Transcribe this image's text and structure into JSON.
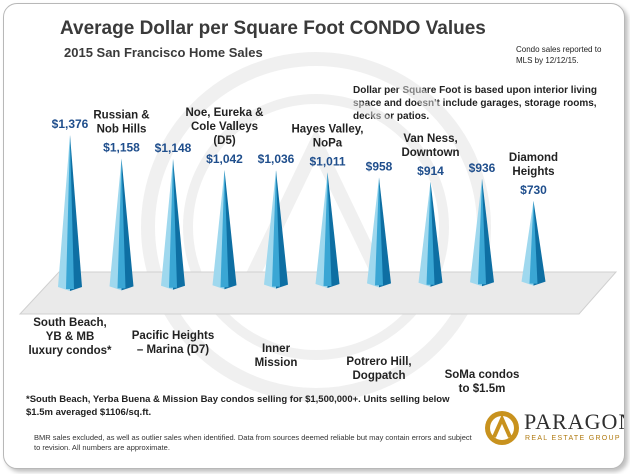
{
  "header": {
    "title": "Average Dollar per Square Foot CONDO Values",
    "subtitle": "2015 San Francisco Home Sales"
  },
  "notes": {
    "side": "Condo sales reported to MLS by 12/12/15.",
    "definition": "Dollar per Square Foot is based upon interior living space and doesn't include garages, storage rooms, decks or patios.",
    "footnote": "*South Beach, Yerba Buena & Mission Bay condos selling for $1,500,000+. Units selling below $1.5m averaged $1106/sq.ft.",
    "disclaimer": "BMR sales excluded, as well as outlier sales when identified. Data from sources deemed reliable but may contain errors and subject to revision. All numbers are approximate."
  },
  "brand": {
    "name": "PARAGON",
    "tagline": "REAL ESTATE GROUP",
    "icon": "paragon-logo-icon"
  },
  "colors": {
    "bar_light": "#9fd8ee",
    "bar_mid": "#3aa6d4",
    "bar_dark": "#0e6fa3",
    "value_text": "#1f4e8c",
    "floor": "#eaeaea"
  },
  "chart_data": {
    "type": "bar",
    "categories": [
      "South Beach, YB & MB luxury condos*",
      "Russian & Nob Hills",
      "Pacific Heights – Marina (D7)",
      "Noe, Eureka & Cole Valleys (D5)",
      "Inner Mission",
      "Hayes Valley, NoPa",
      "Potrero Hill, Dogpatch",
      "Van Ness, Downtown",
      "SoMa condos to $1.5m",
      "Diamond Heights"
    ],
    "category_lines": [
      [
        "South Beach,",
        "YB & MB",
        "luxury condos*"
      ],
      [
        "Russian &",
        "Nob Hills"
      ],
      [
        "Pacific Heights",
        "– Marina (D7)"
      ],
      [
        "Noe, Eureka &",
        "Cole Valleys",
        "(D5)"
      ],
      [
        "Inner",
        "Mission"
      ],
      [
        "Hayes Valley,",
        "NoPa"
      ],
      [
        "Potrero Hill,",
        "Dogpatch"
      ],
      [
        "Van Ness,",
        "Downtown"
      ],
      [
        "SoMa condos",
        "to $1.5m"
      ],
      [
        "Diamond",
        "Heights"
      ]
    ],
    "values": [
      1376,
      1158,
      1148,
      1042,
      1036,
      1011,
      958,
      914,
      936,
      730
    ],
    "value_labels": [
      "$1,376",
      "$1,158",
      "$1,148",
      "$1,042",
      "$1,036",
      "$1,011",
      "$958",
      "$914",
      "$936",
      "$730"
    ],
    "label_positions": [
      "below",
      "above",
      "below",
      "above",
      "below",
      "above",
      "below",
      "above",
      "below",
      "above"
    ],
    "ylim": [
      0,
      1400
    ],
    "shape": "cone"
  }
}
